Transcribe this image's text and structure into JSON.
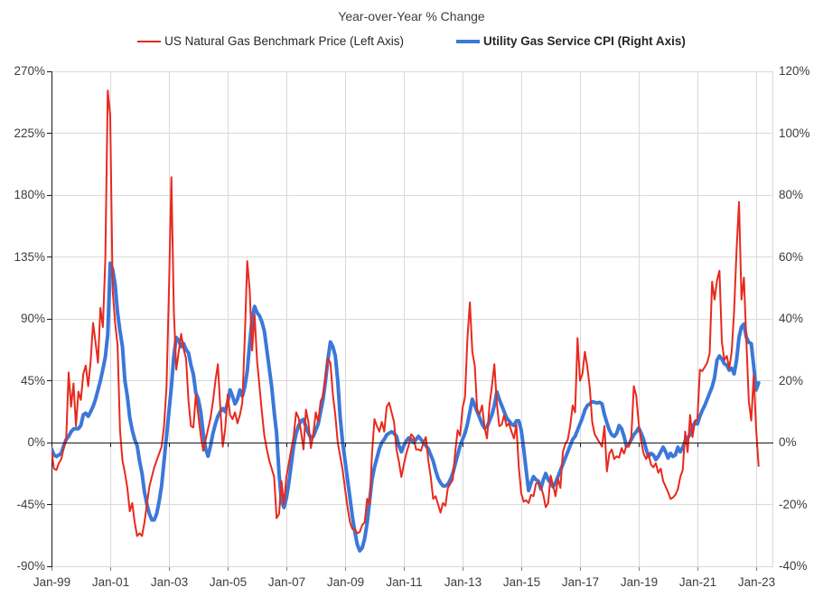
{
  "page": {
    "title": "Year-over-Year % Change"
  },
  "chart_data": {
    "type": "line",
    "title": "Year-over-Year % Change",
    "frequency": "monthly",
    "x_start": "Jan-1999",
    "x_end": "Feb-2023",
    "grid": true,
    "legend_position": "top",
    "x_tick_labels": [
      "Jan-99",
      "Jan-01",
      "Jan-03",
      "Jan-05",
      "Jan-07",
      "Jan-09",
      "Jan-11",
      "Jan-13",
      "Jan-15",
      "Jan-17",
      "Jan-19",
      "Jan-21",
      "Jan-23"
    ],
    "axes": {
      "left": {
        "min": -90,
        "max": 270,
        "step": 45,
        "tick_labels": [
          "270%",
          "225%",
          "180%",
          "135%",
          "90%",
          "45%",
          "0%",
          "-45%",
          "-90%"
        ]
      },
      "right": {
        "min": -40,
        "max": 120,
        "step": 20,
        "tick_labels": [
          "120%",
          "100%",
          "80%",
          "60%",
          "40%",
          "20%",
          "0%",
          "-20%",
          "-40%"
        ]
      }
    },
    "series": [
      {
        "name": "US Natural Gas Benchmark Price (Left Axis)",
        "axis": "left",
        "color": "#e8291d",
        "stroke_width": 2,
        "values": [
          -6,
          -19,
          -20,
          -15,
          -12,
          -4,
          2,
          51,
          26,
          43,
          12,
          37,
          31,
          50,
          56,
          41,
          59,
          87,
          73,
          58,
          98,
          84,
          133,
          256,
          238,
          111,
          87,
          71,
          9,
          -13,
          -22,
          -33,
          -50,
          -44,
          -58,
          -68,
          -66,
          -68,
          -58,
          -45,
          -32,
          -25,
          -18,
          -13,
          -8,
          -3,
          12,
          40,
          110,
          193,
          96,
          53,
          66,
          79,
          68,
          61,
          30,
          12,
          11,
          35,
          20,
          5,
          -6,
          2,
          10,
          18,
          30,
          45,
          57,
          25,
          -3,
          10,
          35,
          20,
          17,
          22,
          14,
          20,
          29,
          76,
          132,
          111,
          67,
          93,
          60,
          41,
          22,
          5,
          -5,
          -13,
          -19,
          -25,
          -55,
          -52,
          -28,
          -45,
          -25,
          -15,
          -5,
          5,
          22,
          18,
          8,
          -5,
          24,
          15,
          -4,
          6,
          22,
          15,
          30,
          34,
          48,
          61,
          58,
          35,
          20,
          0,
          -10,
          -20,
          -34,
          -47,
          -58,
          -63,
          -63,
          -66,
          -65,
          -60,
          -58,
          -41,
          -45,
          -8,
          17,
          12,
          8,
          15,
          8,
          26,
          29,
          22,
          15,
          -5,
          -14,
          -25,
          -16,
          -8,
          -2,
          6,
          4,
          -5,
          -5,
          -6,
          0,
          4,
          -13,
          -25,
          -41,
          -39,
          -45,
          -51,
          -44,
          -46,
          -33,
          -30,
          -27,
          -7,
          9,
          5,
          25,
          33,
          76,
          102,
          66,
          56,
          23,
          21,
          27,
          11,
          3,
          27,
          41,
          57,
          29,
          12,
          13,
          20,
          12,
          14,
          8,
          3,
          13,
          -18,
          -37,
          -43,
          -42,
          -44,
          -38,
          -39,
          -30,
          -29,
          -32,
          -38,
          -47,
          -44,
          -24,
          -31,
          -39,
          -26,
          -33,
          -7,
          -1,
          2,
          12,
          27,
          22,
          76,
          45,
          50,
          66,
          55,
          40,
          15,
          6,
          3,
          0,
          -3,
          12,
          -21,
          -8,
          -5,
          -12,
          -10,
          -11,
          -4,
          -8,
          -2,
          -3,
          5,
          41,
          34,
          14,
          1,
          -8,
          -12,
          -8,
          -16,
          -18,
          -15,
          -22,
          -19,
          -28,
          -32,
          -36,
          -41,
          -40,
          -38,
          -34,
          -25,
          -20,
          8,
          -7,
          20,
          4,
          16,
          17,
          53,
          52,
          55,
          58,
          65,
          117,
          104,
          118,
          125,
          73,
          60,
          63,
          54,
          66,
          96,
          140,
          175,
          104,
          120,
          74,
          30,
          16,
          49,
          10,
          -17
        ]
      },
      {
        "name": "Utility Gas Service CPI (Right Axis)",
        "axis": "right",
        "color": "#3b78d8",
        "stroke_width": 4,
        "values": [
          -2,
          -4,
          -4.5,
          -4,
          -3.5,
          -1,
          1,
          2,
          3.5,
          4.4,
          4.5,
          4.5,
          5.5,
          9,
          9.5,
          8.5,
          10,
          11.7,
          14,
          17,
          20,
          23.7,
          27.7,
          35,
          58,
          56,
          51,
          42,
          36,
          31,
          20,
          15,
          8,
          4,
          1,
          -1,
          -6,
          -10,
          -16,
          -20,
          -23,
          -25,
          -25,
          -23,
          -19,
          -14,
          -6,
          2,
          10,
          18,
          28,
          34,
          33,
          31,
          32,
          30,
          29,
          25,
          22,
          16,
          14,
          10,
          3,
          -2,
          -4.4,
          -1,
          3,
          6,
          8.5,
          10,
          11,
          10,
          13,
          17,
          15,
          12.5,
          14,
          17,
          15,
          18,
          23,
          32,
          40,
          44,
          42,
          41,
          39,
          36,
          30,
          24,
          18,
          10,
          3,
          -10,
          -19,
          -21,
          -18,
          -13,
          -7,
          -1,
          3,
          5.5,
          7,
          7.5,
          5,
          3,
          1.5,
          2,
          4,
          6,
          10,
          14,
          20,
          27,
          32.5,
          31,
          28,
          20,
          8,
          0,
          -6,
          -12,
          -18,
          -24,
          -29,
          -33,
          -35,
          -34,
          -31,
          -26,
          -19,
          -12,
          -8,
          -5,
          -2,
          0,
          1,
          2.5,
          3,
          3.5,
          3,
          2,
          -1,
          -3,
          -1,
          0.5,
          1.5,
          1,
          0,
          1,
          2,
          1,
          0,
          -1,
          -2,
          -4,
          -6,
          -9,
          -11.5,
          -13,
          -14,
          -14,
          -13.5,
          -12,
          -10,
          -7,
          -4,
          -1,
          1,
          3,
          6,
          10,
          14,
          12,
          10,
          8,
          6,
          4.7,
          5,
          7,
          9,
          12,
          16.4,
          14,
          12,
          10,
          8,
          7,
          6,
          5.5,
          7,
          7,
          4,
          -2,
          -9,
          -15.5,
          -13,
          -11,
          -12,
          -12.5,
          -15,
          -12,
          -10,
          -12,
          -13,
          -14.3,
          -13,
          -11,
          -9,
          -7,
          -5,
          -3,
          -1,
          1,
          2,
          4,
          6,
          8,
          10.5,
          12,
          12.5,
          13.2,
          13,
          12.8,
          13,
          12.5,
          9,
          6.4,
          4,
          2.5,
          2,
          3,
          5.5,
          4.5,
          2,
          -1.2,
          -0.5,
          1,
          2.5,
          3.5,
          4.7,
          3,
          1,
          -2,
          -4.5,
          -3.5,
          -4,
          -5.5,
          -4.5,
          -3,
          -1.5,
          -3,
          -5,
          -3.5,
          -4.5,
          -4,
          -1.5,
          -3,
          -1.5,
          0.5,
          1.5,
          2.6,
          5,
          6.5,
          6,
          8.5,
          10.4,
          12,
          14,
          16,
          18,
          21,
          26.6,
          28,
          27,
          25.5,
          25,
          23.4,
          24,
          22.2,
          26.6,
          34,
          37.4,
          38.3,
          34,
          32.4,
          32,
          24.8,
          17,
          19.3
        ]
      }
    ]
  }
}
